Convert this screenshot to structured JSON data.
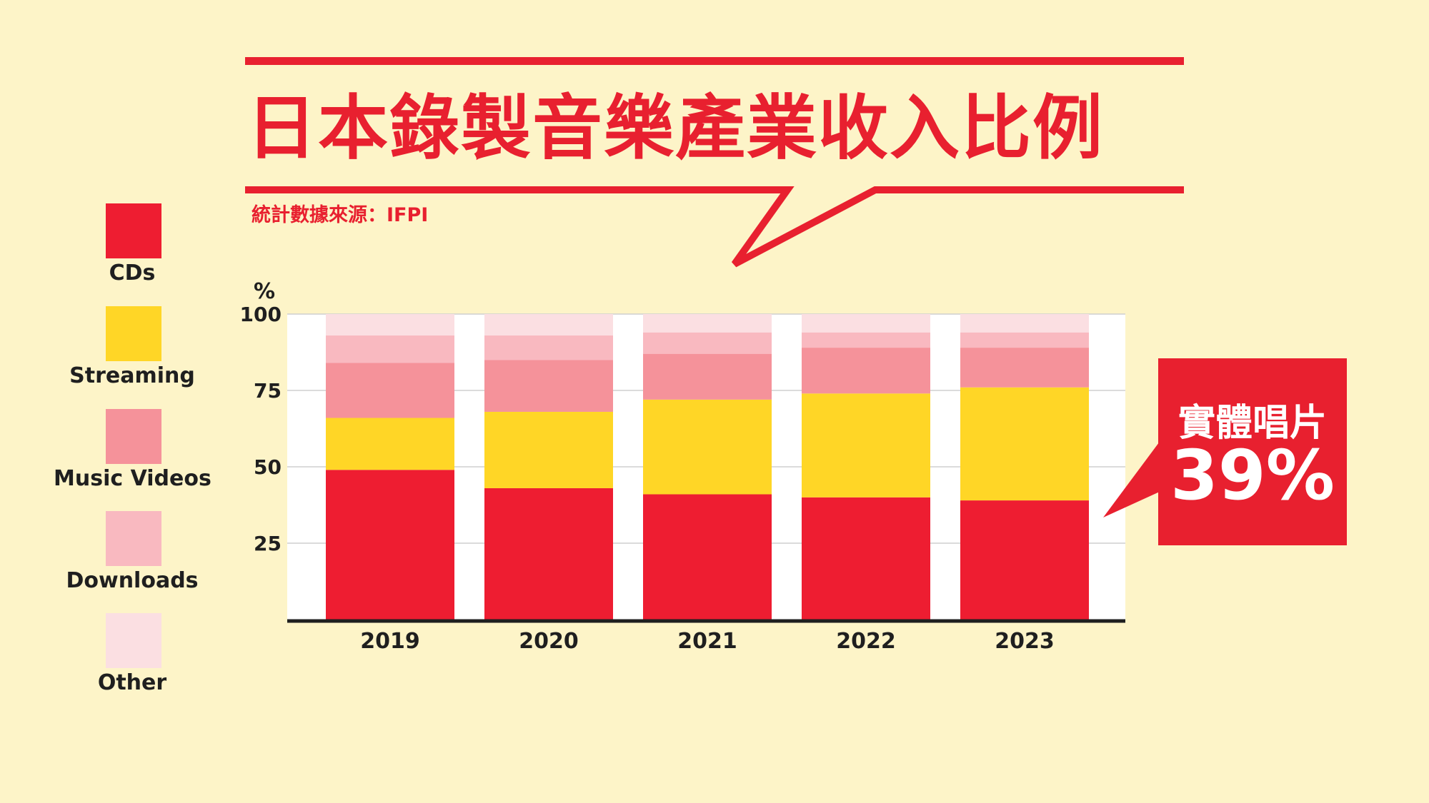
{
  "title": "日本錄製音樂產業收入比例",
  "source": "統計數據來源：IFPI",
  "legend": [
    {
      "label": "CDs",
      "color": "#ee1d31"
    },
    {
      "label": "Streaming",
      "color": "#ffd626"
    },
    {
      "label": "Music Videos",
      "color": "#f5929a"
    },
    {
      "label": "Downloads",
      "color": "#f9b9c0"
    },
    {
      "label": "Other",
      "color": "#fbdfe2"
    }
  ],
  "callout": {
    "label": "實體唱片",
    "value": "39%",
    "color": "#e8202f"
  },
  "chart_data": {
    "type": "bar",
    "stacked": true,
    "categories": [
      "2019",
      "2020",
      "2021",
      "2022",
      "2023"
    ],
    "series": [
      {
        "name": "CDs",
        "values": [
          49,
          43,
          41,
          40,
          39
        ],
        "color": "#ee1d31"
      },
      {
        "name": "Streaming",
        "values": [
          17,
          25,
          31,
          34,
          37
        ],
        "color": "#ffd626"
      },
      {
        "name": "Music Videos",
        "values": [
          18,
          17,
          15,
          15,
          13
        ],
        "color": "#f5929a"
      },
      {
        "name": "Downloads",
        "values": [
          9,
          8,
          7,
          5,
          5
        ],
        "color": "#f9b9c0"
      },
      {
        "name": "Other",
        "values": [
          7,
          7,
          6,
          6,
          6
        ],
        "color": "#fbdfe2"
      }
    ],
    "ylabel": "%",
    "ylim": [
      0,
      100
    ],
    "yticks": [
      25,
      50,
      75,
      100
    ],
    "grid": true
  }
}
